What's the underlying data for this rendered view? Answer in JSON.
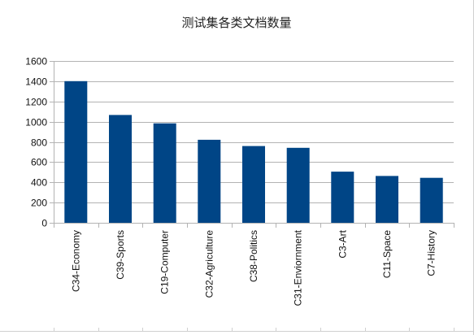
{
  "chart_data": {
    "type": "bar",
    "title": "测试集各类文档数量",
    "xlabel": "",
    "ylabel": "",
    "categories": [
      "C34-Economy",
      "C39-Sports",
      "C19-Computer",
      "C32-Agriculture",
      "C38-Politics",
      "C31-Enviornment",
      "C3-Art",
      "C11-Space",
      "C7-History"
    ],
    "values": [
      1401,
      1066,
      983,
      821,
      759,
      741,
      506,
      463,
      445
    ],
    "ylim": [
      0,
      1600
    ],
    "yticks": [
      "0",
      "200",
      "400",
      "600",
      "800",
      "1000",
      "1200",
      "1400",
      "1600"
    ],
    "grid": true,
    "legend": "none",
    "bar_color": "#004586",
    "grid_color": "#b3b3b3"
  }
}
